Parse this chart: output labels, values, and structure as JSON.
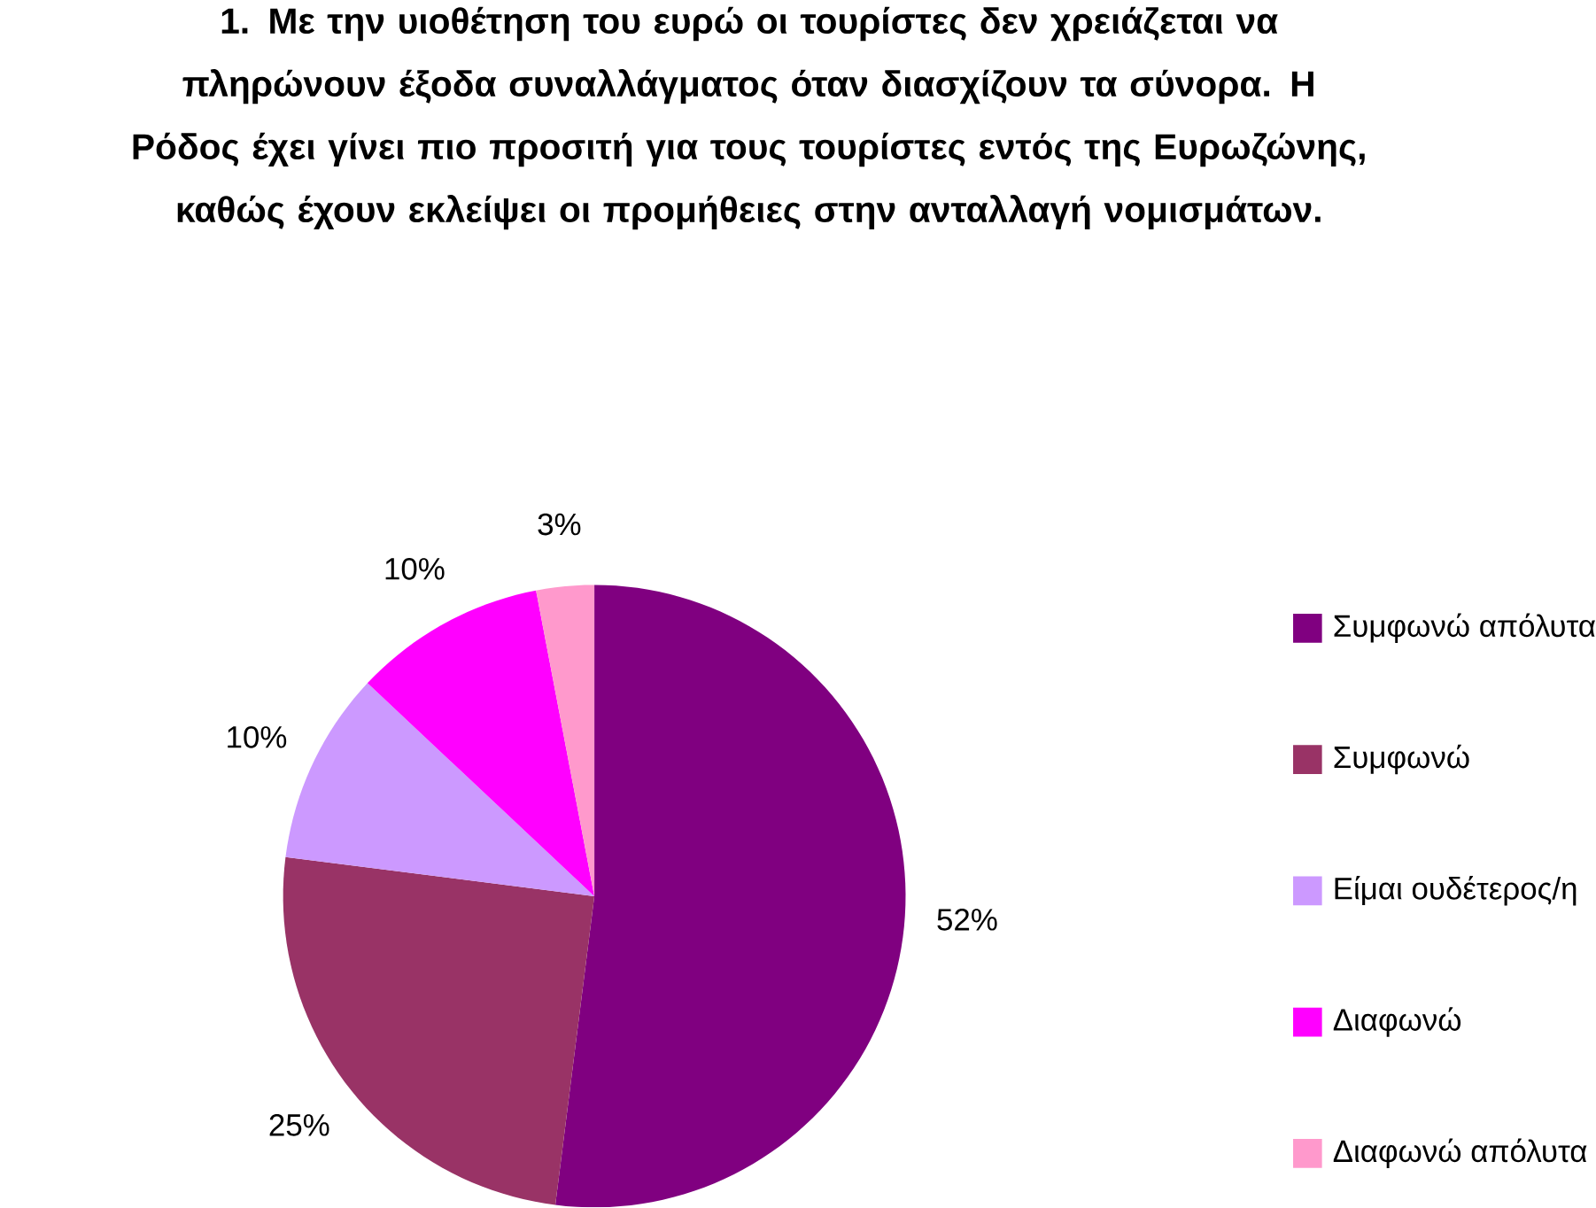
{
  "chart_data": {
    "type": "pie",
    "title": "**1. Με την υιοθέτηση του ευρώ οι τουρίστες δεν χρειάζεται να πληρώνουν έξοδα συναλλάγματος όταν διασχίζουν τα σύνορα. Η Ρόδος έχει γίνει πιο προσιτή για τους τουρίστες εντός της Ευρωζώνης, καθώς έχουν εκλείψει οι προμήθειες στην ανταλλαγή νομισμάτων.**",
    "categories": [
      "Συμφωνώ απόλυτα",
      "Συμφωνώ",
      "Είμαι ουδέτερος/η",
      "Διαφωνώ",
      "Διαφωνώ απόλυτα"
    ],
    "values": [
      52,
      25,
      10,
      10,
      3
    ],
    "value_labels": [
      "52%",
      "25%",
      "10%",
      "10%",
      "3%"
    ],
    "colors": [
      "#800080",
      "#993366",
      "#cc99ff",
      "#ff00ff",
      "#ff99cc"
    ],
    "legend": "right"
  }
}
